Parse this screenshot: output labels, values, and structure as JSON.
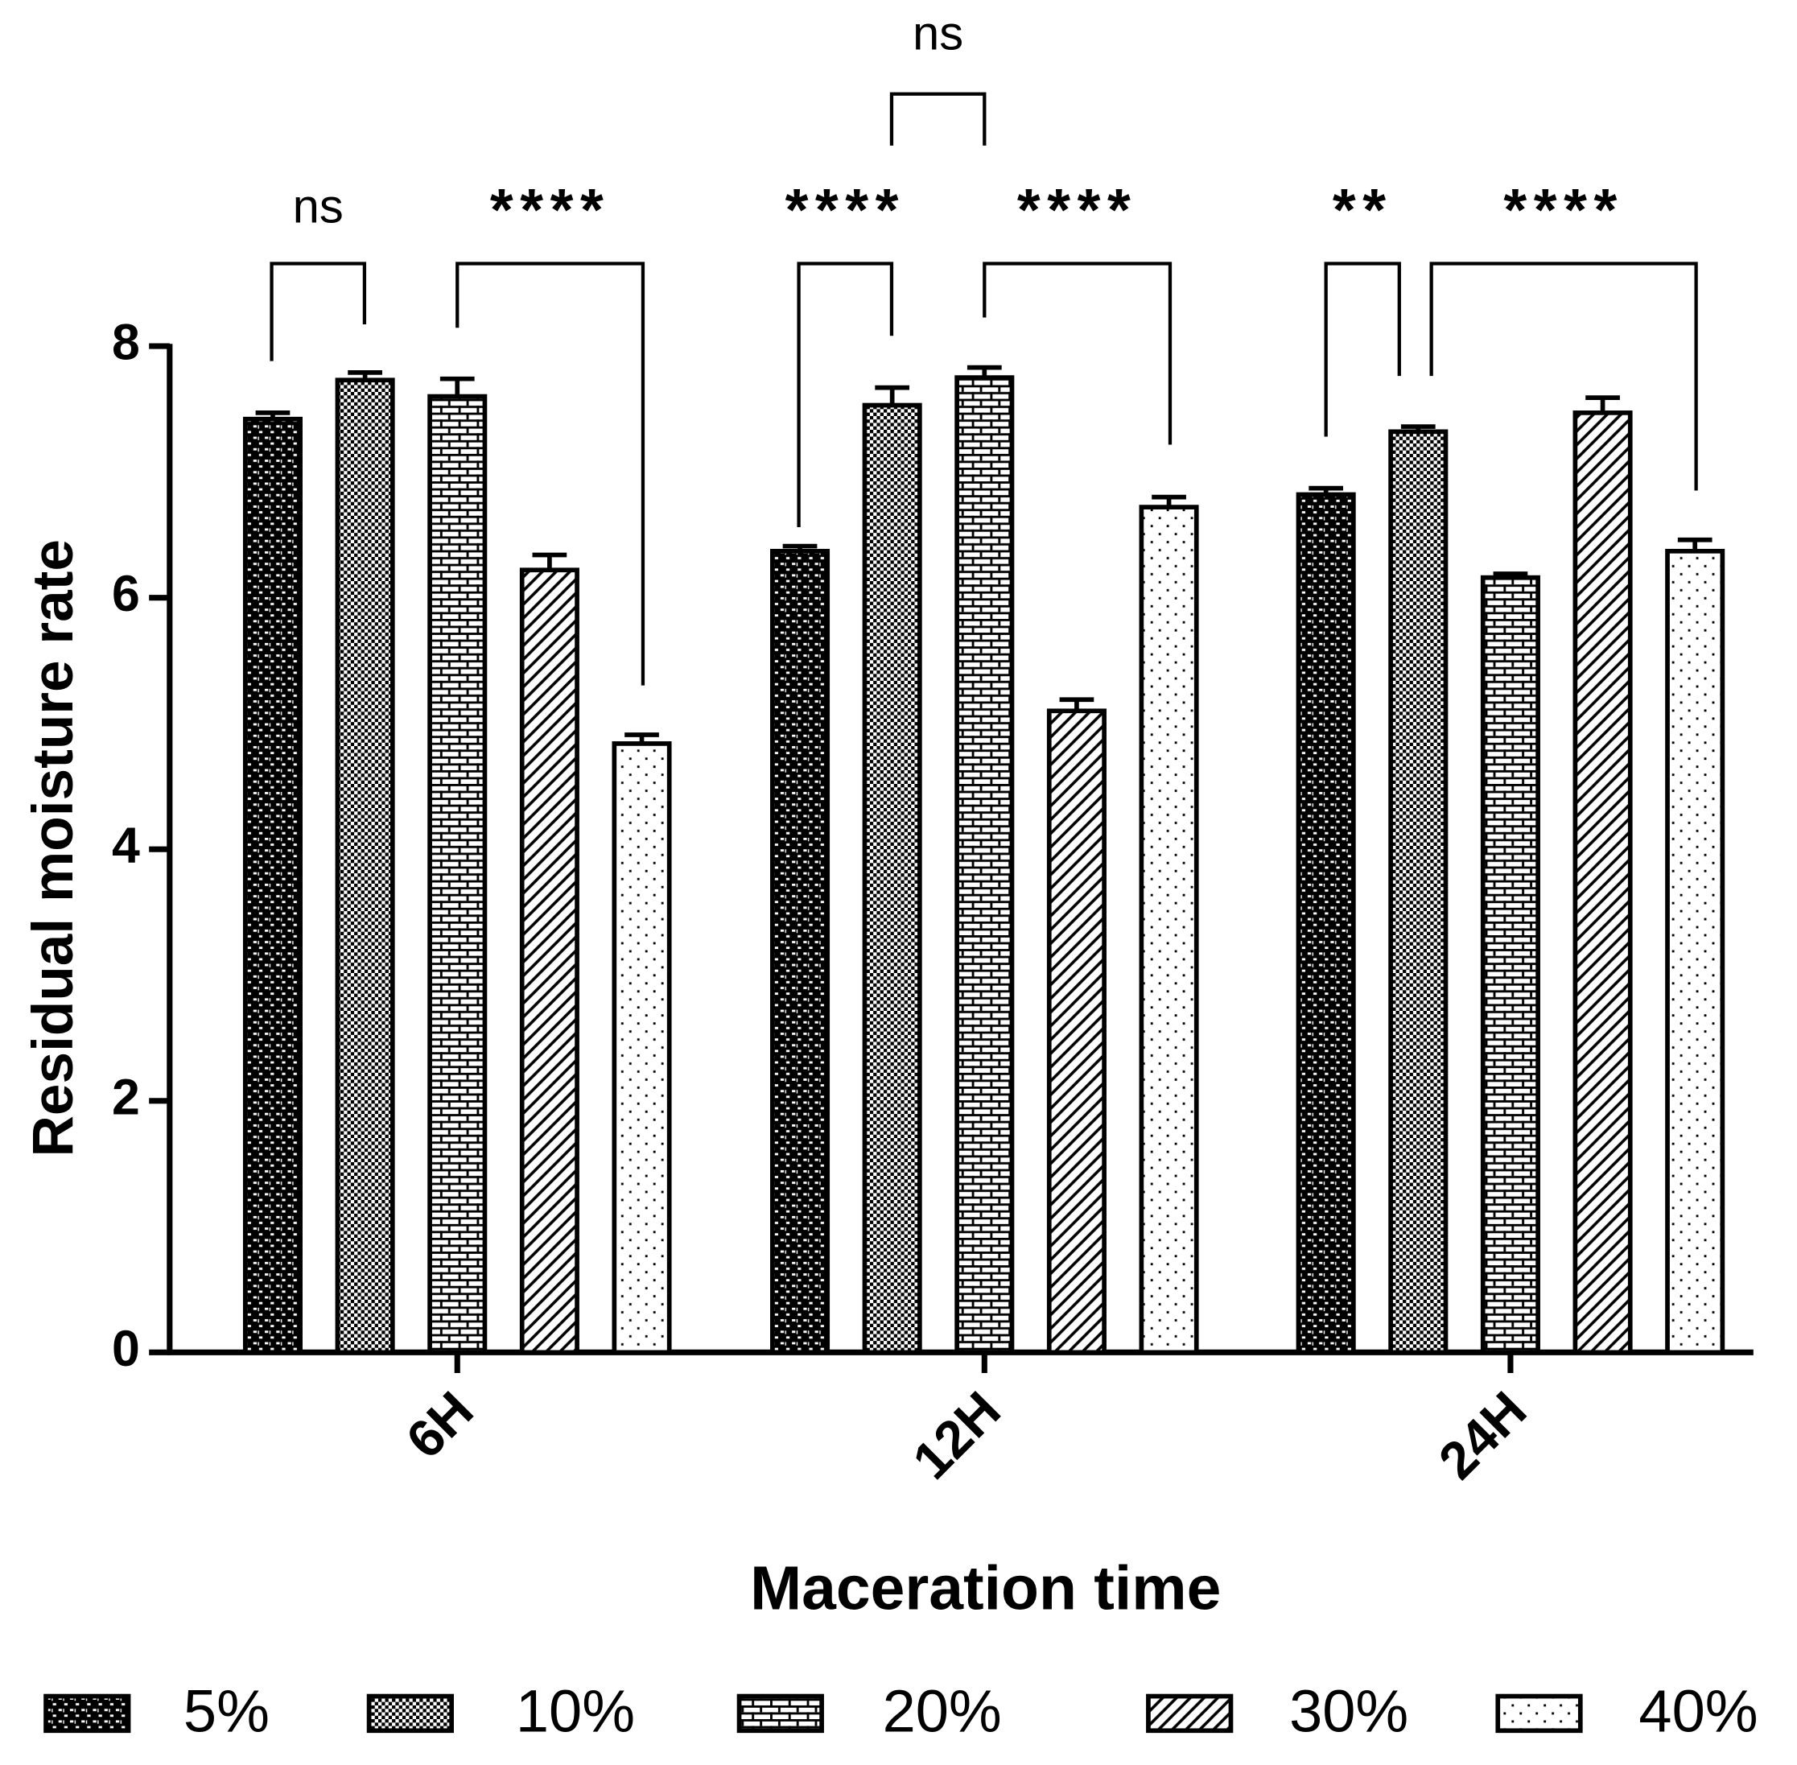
{
  "chart_data": {
    "type": "bar",
    "x_label": "Maceration time",
    "y_label": "Residual moisture rate",
    "categories": [
      "6H",
      "12H",
      "24H"
    ],
    "series": [
      {
        "name": "5%",
        "color": "#000000",
        "values": [
          7.42,
          6.37,
          6.82
        ],
        "errors": [
          0.05,
          0.04,
          0.05
        ]
      },
      {
        "name": "10%",
        "color": "#000000",
        "values": [
          7.73,
          7.53,
          7.32
        ],
        "errors": [
          0.06,
          0.14,
          0.04
        ]
      },
      {
        "name": "20%",
        "color": "#000000",
        "values": [
          7.6,
          7.75,
          6.16
        ],
        "errors": [
          0.14,
          0.08,
          0.03
        ]
      },
      {
        "name": "30%",
        "color": "#000000",
        "values": [
          6.22,
          5.1,
          7.47
        ],
        "errors": [
          0.12,
          0.09,
          0.12
        ]
      },
      {
        "name": "40%",
        "color": "#000000",
        "values": [
          4.84,
          6.72,
          6.37
        ],
        "errors": [
          0.07,
          0.08,
          0.09
        ]
      }
    ],
    "ylim": [
      0,
      8
    ],
    "yticks": [
      0,
      2,
      4,
      6,
      8
    ],
    "annotations": [
      "ns",
      "****",
      "****",
      "ns",
      "****",
      "**",
      "****"
    ]
  }
}
